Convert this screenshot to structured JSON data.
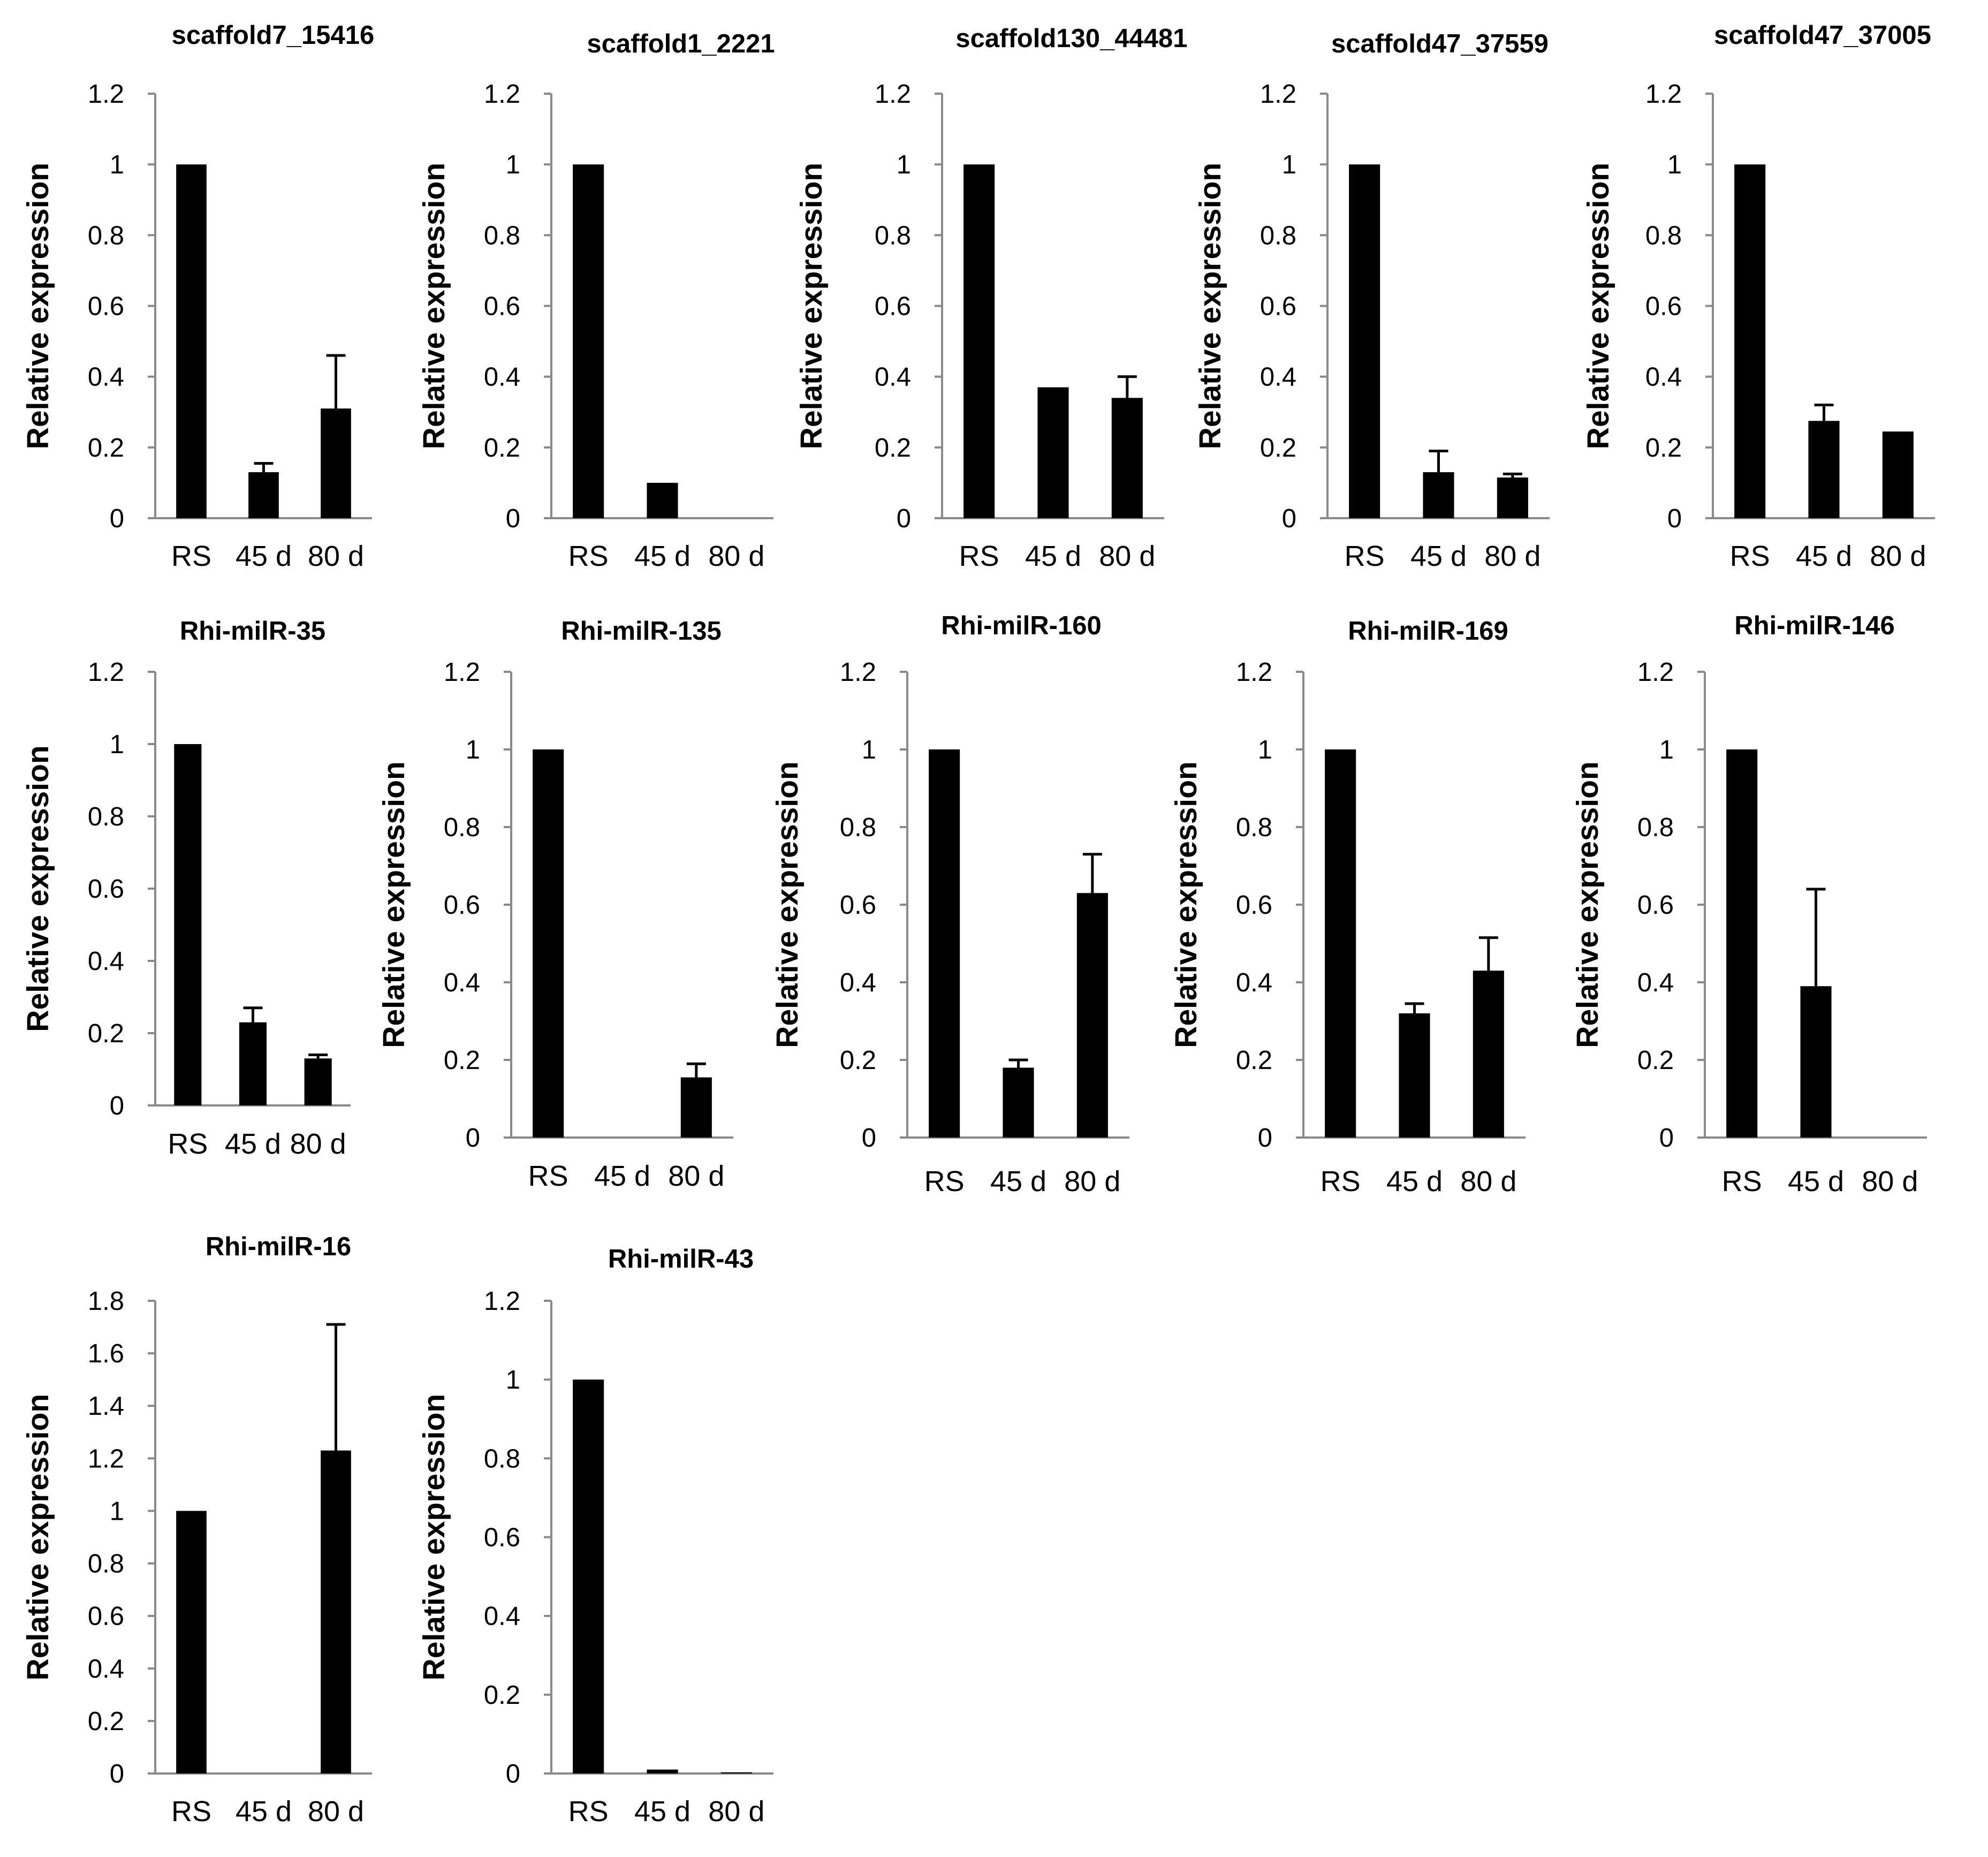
{
  "colors": {
    "bar": "#000000",
    "axis": "#8a8a8a",
    "background": "#ffffff"
  },
  "chart_data": [
    {
      "type": "bar",
      "title": "scaffold7_15416",
      "ylabel": "Relative expression",
      "xlabel": "",
      "categories": [
        "RS",
        "45 d",
        "80 d"
      ],
      "values": [
        1,
        0.13,
        0.31
      ],
      "errors": [
        0,
        0.025,
        0.15
      ],
      "ylim": [
        0,
        1.2
      ],
      "yticks": [
        0,
        0.2,
        0.4,
        0.6,
        0.8,
        1,
        1.2
      ]
    },
    {
      "type": "bar",
      "title": "scaffold1_2221",
      "ylabel": "Relative expression",
      "xlabel": "",
      "categories": [
        "RS",
        "45 d",
        "80 d"
      ],
      "values": [
        1,
        0.1,
        0
      ],
      "errors": [
        0,
        0,
        0
      ],
      "ylim": [
        0,
        1.2
      ],
      "yticks": [
        0,
        0.2,
        0.4,
        0.6,
        0.8,
        1,
        1.2
      ]
    },
    {
      "type": "bar",
      "title": "scaffold130_44481",
      "ylabel": "Relative expression",
      "xlabel": "",
      "categories": [
        "RS",
        "45 d",
        "80 d"
      ],
      "values": [
        1,
        0.37,
        0.34
      ],
      "errors": [
        0,
        0,
        0.06
      ],
      "ylim": [
        0,
        1.2
      ],
      "yticks": [
        0,
        0.2,
        0.4,
        0.6,
        0.8,
        1,
        1.2
      ]
    },
    {
      "type": "bar",
      "title": "scaffold47_37559",
      "ylabel": "Relative expression",
      "xlabel": "",
      "categories": [
        "RS",
        "45 d",
        "80 d"
      ],
      "values": [
        1,
        0.13,
        0.115
      ],
      "errors": [
        0,
        0.06,
        0.01
      ],
      "ylim": [
        0,
        1.2
      ],
      "yticks": [
        0,
        0.2,
        0.4,
        0.6,
        0.8,
        1,
        1.2
      ]
    },
    {
      "type": "bar",
      "title": "scaffold47_37005",
      "ylabel": "Relative expression",
      "xlabel": "",
      "categories": [
        "RS",
        "45 d",
        "80 d"
      ],
      "values": [
        1,
        0.275,
        0.245
      ],
      "errors": [
        0,
        0.045,
        0
      ],
      "ylim": [
        0,
        1.2
      ],
      "yticks": [
        0,
        0.2,
        0.4,
        0.6,
        0.8,
        1,
        1.2
      ]
    },
    {
      "type": "bar",
      "title": "Rhi-milR-35",
      "ylabel": "Relative expression",
      "xlabel": "",
      "categories": [
        "RS",
        "45 d",
        "80 d"
      ],
      "values": [
        1,
        0.23,
        0.13
      ],
      "errors": [
        0,
        0.04,
        0.01
      ],
      "ylim": [
        0,
        1.2
      ],
      "yticks": [
        0,
        0.2,
        0.4,
        0.6,
        0.8,
        1,
        1.2
      ]
    },
    {
      "type": "bar",
      "title": "Rhi-milR-135",
      "ylabel": "Relative expression",
      "xlabel": "",
      "categories": [
        "RS",
        "45 d",
        "80 d"
      ],
      "values": [
        1,
        0,
        0.155
      ],
      "errors": [
        0,
        0,
        0.035
      ],
      "ylim": [
        0,
        1.2
      ],
      "yticks": [
        0,
        0.2,
        0.4,
        0.6,
        0.8,
        1,
        1.2
      ]
    },
    {
      "type": "bar",
      "title": "Rhi-milR-160",
      "ylabel": "Relative expression",
      "xlabel": "",
      "categories": [
        "RS",
        "45 d",
        "80 d"
      ],
      "values": [
        1,
        0.18,
        0.63
      ],
      "errors": [
        0,
        0.02,
        0.1
      ],
      "ylim": [
        0,
        1.2
      ],
      "yticks": [
        0,
        0.2,
        0.4,
        0.6,
        0.8,
        1,
        1.2
      ]
    },
    {
      "type": "bar",
      "title": "Rhi-milR-169",
      "ylabel": "Relative expression",
      "xlabel": "",
      "categories": [
        "RS",
        "45 d",
        "80 d"
      ],
      "values": [
        1,
        0.32,
        0.43
      ],
      "errors": [
        0,
        0.025,
        0.085
      ],
      "ylim": [
        0,
        1.2
      ],
      "yticks": [
        0,
        0.2,
        0.4,
        0.6,
        0.8,
        1,
        1.2
      ]
    },
    {
      "type": "bar",
      "title": "Rhi-milR-146",
      "ylabel": "Relative expression",
      "xlabel": "",
      "categories": [
        "RS",
        "45 d",
        "80 d"
      ],
      "values": [
        1,
        0.39,
        0
      ],
      "errors": [
        0,
        0.25,
        0
      ],
      "ylim": [
        0,
        1.2
      ],
      "yticks": [
        0,
        0.2,
        0.4,
        0.6,
        0.8,
        1,
        1.2
      ]
    },
    {
      "type": "bar",
      "title": "Rhi-milR-16",
      "ylabel": "Relative expression",
      "xlabel": "",
      "categories": [
        "RS",
        "45 d",
        "80 d"
      ],
      "values": [
        1,
        0,
        1.23
      ],
      "errors": [
        0,
        0,
        0.48
      ],
      "ylim": [
        0,
        1.8
      ],
      "yticks": [
        0,
        0.2,
        0.4,
        0.6,
        0.8,
        1,
        1.2,
        1.4,
        1.6,
        1.8
      ]
    },
    {
      "type": "bar",
      "title": "Rhi-milR-43",
      "ylabel": "Relative expression",
      "xlabel": "",
      "categories": [
        "RS",
        "45 d",
        "80 d"
      ],
      "values": [
        1,
        0.01,
        0.003
      ],
      "errors": [
        0,
        0,
        0
      ],
      "ylim": [
        0,
        1.2
      ],
      "yticks": [
        0,
        0.2,
        0.4,
        0.6,
        0.8,
        1,
        1.2
      ]
    }
  ]
}
